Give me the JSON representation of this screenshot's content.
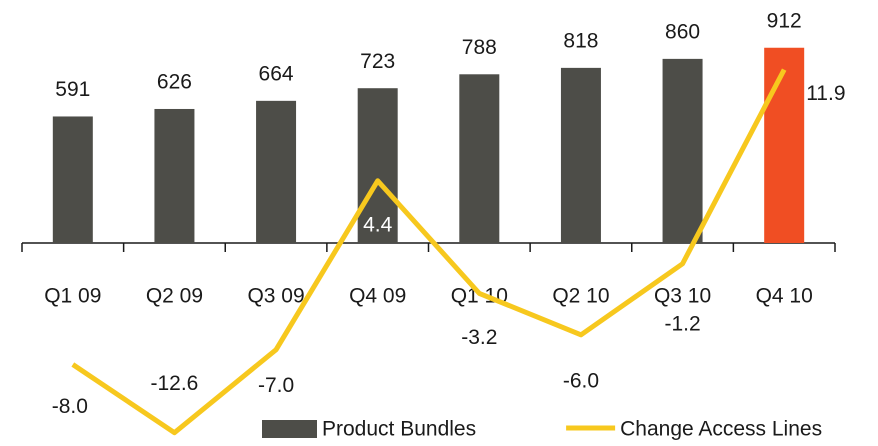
{
  "chart_data": {
    "type": "bar-line",
    "categories": [
      "Q1 09",
      "Q2 09",
      "Q3 09",
      "Q4 09",
      "Q1 10",
      "Q2 10",
      "Q3 10",
      "Q4 10"
    ],
    "series": [
      {
        "name": "Product Bundles",
        "type": "bar",
        "color": "#4d4d48",
        "colors": [
          "#4d4d48",
          "#4d4d48",
          "#4d4d48",
          "#4d4d48",
          "#4d4d48",
          "#4d4d48",
          "#4d4d48",
          "#f04e23"
        ],
        "values": [
          591,
          626,
          664,
          723,
          788,
          818,
          860,
          912
        ]
      },
      {
        "name": "Change Access Lines",
        "type": "line",
        "axis": "y2",
        "color": "#f7c81e",
        "values": [
          -8.0,
          -12.6,
          -7.0,
          4.4,
          -3.2,
          -6.0,
          -1.2,
          11.9
        ],
        "value_labels": [
          "-8.0",
          "-12.6",
          "-7.0",
          "4.4",
          "-3.2",
          "-6.0",
          "-1.2",
          "11.9"
        ]
      }
    ],
    "ylim": [
      0,
      1135
    ],
    "y2lim": [
      -13.5,
      16.6
    ],
    "legend": "bottom"
  }
}
